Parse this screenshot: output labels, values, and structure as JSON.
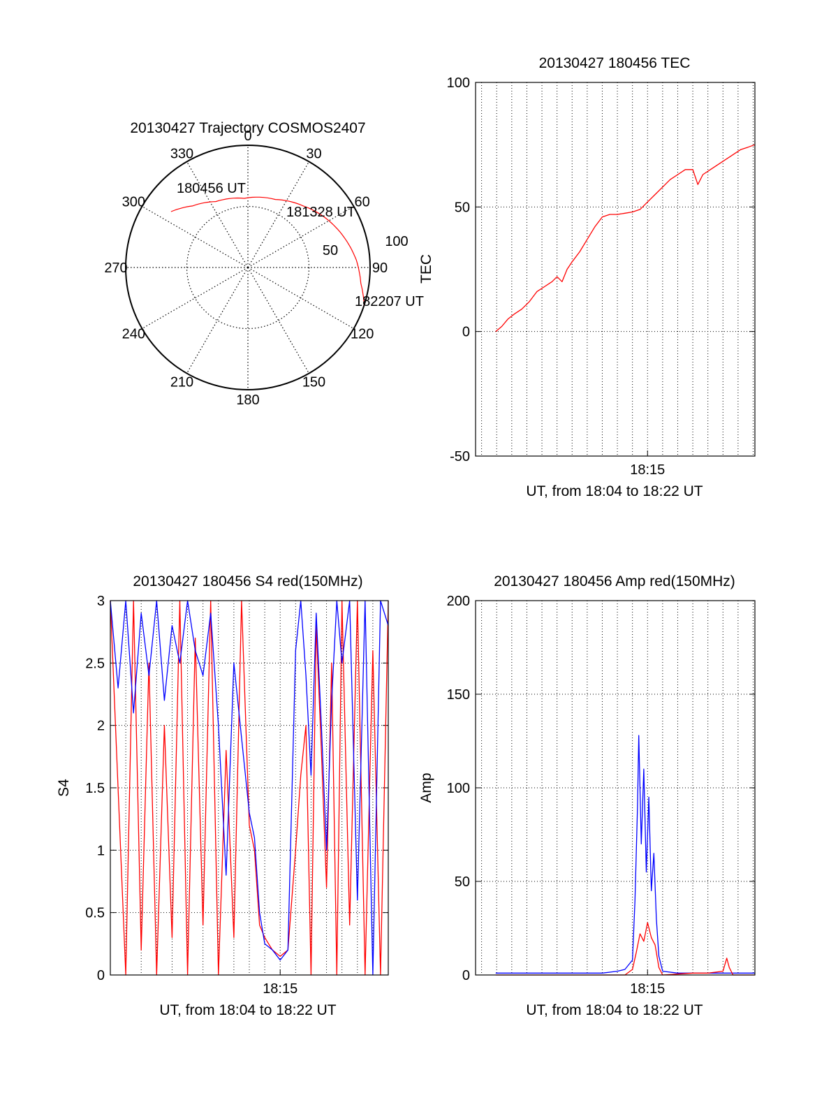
{
  "chart_data": [
    {
      "id": "trajectory",
      "type": "polar",
      "title": "20130427 Trajectory COSMOS2407",
      "azimuth_labels": [
        "0",
        "30",
        "60",
        "90",
        "120",
        "150",
        "180",
        "210",
        "240",
        "270",
        "300",
        "330"
      ],
      "radial_labels": [
        "50",
        "100"
      ],
      "trajectory": [
        {
          "az": 306,
          "el": 20
        },
        {
          "az": 318,
          "el": 29
        },
        {
          "az": 334,
          "el": 36
        },
        {
          "az": 357,
          "el": 39
        },
        {
          "az": 22,
          "el": 36
        },
        {
          "az": 42,
          "el": 29
        },
        {
          "az": 58,
          "el": 22
        },
        {
          "az": 72,
          "el": 16
        },
        {
          "az": 86,
          "el": 10
        },
        {
          "az": 98,
          "el": 6
        },
        {
          "az": 108,
          "el": 0
        }
      ],
      "annotations": [
        {
          "text": "180456 UT",
          "az": 306,
          "el": 20
        },
        {
          "text": "181328 UT",
          "az": 58,
          "el": 22
        },
        {
          "text": "182207 UT",
          "az": 108,
          "el": 0
        }
      ],
      "colors": {
        "trajectory": "#ff0000"
      }
    },
    {
      "id": "tec",
      "type": "line",
      "title": "20130427 180456 TEC",
      "xlabel": "UT, from 18:04 to 18:22 UT",
      "ylabel": "TEC",
      "ylim": [
        -50,
        100
      ],
      "yticks": [
        -50,
        0,
        50,
        100
      ],
      "xlim": [
        "18:03:36",
        "18:22:07"
      ],
      "xtick_labels": [
        {
          "t": "18:15:00",
          "label": "18:15"
        }
      ],
      "grid": true,
      "series": [
        {
          "color": "#ff0000",
          "points": [
            [
              "18:04:56",
              0
            ],
            [
              "18:05:20",
              2
            ],
            [
              "18:05:45",
              5
            ],
            [
              "18:06:10",
              7
            ],
            [
              "18:06:40",
              9
            ],
            [
              "18:07:10",
              12
            ],
            [
              "18:07:40",
              16
            ],
            [
              "18:08:10",
              18
            ],
            [
              "18:08:40",
              20
            ],
            [
              "18:09:00",
              22
            ],
            [
              "18:09:20",
              20
            ],
            [
              "18:09:40",
              25
            ],
            [
              "18:10:00",
              28
            ],
            [
              "18:10:30",
              32
            ],
            [
              "18:11:00",
              37
            ],
            [
              "18:11:30",
              42
            ],
            [
              "18:12:00",
              46
            ],
            [
              "18:12:30",
              47
            ],
            [
              "18:13:00",
              47
            ],
            [
              "18:13:30",
              47.5
            ],
            [
              "18:14:00",
              48
            ],
            [
              "18:14:30",
              49
            ],
            [
              "18:15:00",
              52
            ],
            [
              "18:15:30",
              55
            ],
            [
              "18:16:00",
              58
            ],
            [
              "18:16:30",
              61
            ],
            [
              "18:17:00",
              63
            ],
            [
              "18:17:30",
              65
            ],
            [
              "18:18:00",
              65
            ],
            [
              "18:18:20",
              59
            ],
            [
              "18:18:40",
              63
            ],
            [
              "18:19:10",
              65
            ],
            [
              "18:19:40",
              67
            ],
            [
              "18:20:10",
              69
            ],
            [
              "18:20:40",
              71
            ],
            [
              "18:21:10",
              73
            ],
            [
              "18:21:40",
              74
            ],
            [
              "18:22:07",
              75
            ]
          ]
        }
      ]
    },
    {
      "id": "s4",
      "type": "line",
      "title": "20130427 180456 S4 red(150MHz)",
      "xlabel": "UT, from 18:04 to 18:22 UT",
      "ylabel": "S4",
      "ylim": [
        0,
        3
      ],
      "yticks": [
        0,
        0.5,
        1,
        1.5,
        2,
        2.5,
        3
      ],
      "xlim": [
        "18:04:00",
        "18:22:00"
      ],
      "xtick_labels": [
        {
          "t": "18:15:00",
          "label": "18:15"
        }
      ],
      "grid": true,
      "series": [
        {
          "color": "#ff0000",
          "points": [
            [
              "18:04:00",
              3
            ],
            [
              "18:05:00",
              0
            ],
            [
              "18:05:30",
              3
            ],
            [
              "18:06:00",
              0.2
            ],
            [
              "18:06:30",
              2.5
            ],
            [
              "18:07:00",
              0
            ],
            [
              "18:07:30",
              2
            ],
            [
              "18:08:00",
              0.3
            ],
            [
              "18:08:30",
              3
            ],
            [
              "18:09:00",
              0
            ],
            [
              "18:09:30",
              2.7
            ],
            [
              "18:10:00",
              0.4
            ],
            [
              "18:10:30",
              3
            ],
            [
              "18:11:00",
              0
            ],
            [
              "18:11:30",
              1.8
            ],
            [
              "18:12:00",
              0.3
            ],
            [
              "18:12:30",
              3
            ],
            [
              "18:13:00",
              1.2
            ],
            [
              "18:13:20",
              1.0
            ],
            [
              "18:13:40",
              0.4
            ],
            [
              "18:14:00",
              0.3
            ],
            [
              "18:14:30",
              0.2
            ],
            [
              "18:15:00",
              0.15
            ],
            [
              "18:15:30",
              0.2
            ],
            [
              "18:16:00",
              1.0
            ],
            [
              "18:16:20",
              1.6
            ],
            [
              "18:16:40",
              2.0
            ],
            [
              "18:17:00",
              0
            ],
            [
              "18:17:20",
              2.8
            ],
            [
              "18:17:40",
              1.8
            ],
            [
              "18:18:00",
              0.7
            ],
            [
              "18:18:20",
              2.5
            ],
            [
              "18:18:40",
              0
            ],
            [
              "18:19:00",
              3
            ],
            [
              "18:19:30",
              0.4
            ],
            [
              "18:20:00",
              3
            ],
            [
              "18:20:30",
              0
            ],
            [
              "18:21:00",
              2.6
            ],
            [
              "18:21:30",
              0
            ],
            [
              "18:22:00",
              3
            ]
          ]
        },
        {
          "color": "#0000ff",
          "points": [
            [
              "18:04:00",
              3
            ],
            [
              "18:04:30",
              2.3
            ],
            [
              "18:05:00",
              3
            ],
            [
              "18:05:30",
              2.1
            ],
            [
              "18:06:00",
              2.9
            ],
            [
              "18:06:30",
              2.4
            ],
            [
              "18:07:00",
              3
            ],
            [
              "18:07:30",
              2.2
            ],
            [
              "18:08:00",
              2.8
            ],
            [
              "18:08:30",
              2.5
            ],
            [
              "18:09:00",
              3
            ],
            [
              "18:09:30",
              2.6
            ],
            [
              "18:10:00",
              2.4
            ],
            [
              "18:10:30",
              2.9
            ],
            [
              "18:11:00",
              2.0
            ],
            [
              "18:11:30",
              0.8
            ],
            [
              "18:12:00",
              2.5
            ],
            [
              "18:12:30",
              1.9
            ],
            [
              "18:13:00",
              1.3
            ],
            [
              "18:13:20",
              1.1
            ],
            [
              "18:13:40",
              0.5
            ],
            [
              "18:14:00",
              0.25
            ],
            [
              "18:14:30",
              0.2
            ],
            [
              "18:15:00",
              0.12
            ],
            [
              "18:15:30",
              0.2
            ],
            [
              "18:16:00",
              2.6
            ],
            [
              "18:16:20",
              3
            ],
            [
              "18:16:40",
              2.4
            ],
            [
              "18:17:00",
              1.6
            ],
            [
              "18:17:20",
              2.9
            ],
            [
              "18:17:40",
              2.0
            ],
            [
              "18:18:00",
              1.0
            ],
            [
              "18:18:20",
              2.2
            ],
            [
              "18:18:40",
              3
            ],
            [
              "18:19:00",
              2.5
            ],
            [
              "18:19:30",
              3
            ],
            [
              "18:20:00",
              0.6
            ],
            [
              "18:20:30",
              3
            ],
            [
              "18:21:00",
              0
            ],
            [
              "18:21:30",
              3
            ],
            [
              "18:22:00",
              2.8
            ]
          ]
        }
      ]
    },
    {
      "id": "amp",
      "type": "line",
      "title": "20130427 180456 Amp red(150MHz)",
      "xlabel": "UT, from 18:04 to 18:22 UT",
      "ylabel": "Amp",
      "ylim": [
        0,
        200
      ],
      "yticks": [
        0,
        50,
        100,
        150,
        200
      ],
      "xlim": [
        "18:03:36",
        "18:22:07"
      ],
      "xtick_labels": [
        {
          "t": "18:15:00",
          "label": "18:15"
        }
      ],
      "grid": true,
      "series": [
        {
          "color": "#0000ff",
          "points": [
            [
              "18:04:56",
              1
            ],
            [
              "18:06:00",
              1
            ],
            [
              "18:08:00",
              1
            ],
            [
              "18:10:00",
              1
            ],
            [
              "18:12:00",
              1
            ],
            [
              "18:13:00",
              2
            ],
            [
              "18:13:30",
              3
            ],
            [
              "18:14:00",
              8
            ],
            [
              "18:14:10",
              40
            ],
            [
              "18:14:20",
              90
            ],
            [
              "18:14:25",
              128
            ],
            [
              "18:14:35",
              70
            ],
            [
              "18:14:45",
              110
            ],
            [
              "18:14:55",
              55
            ],
            [
              "18:15:05",
              95
            ],
            [
              "18:15:15",
              45
            ],
            [
              "18:15:25",
              65
            ],
            [
              "18:15:35",
              30
            ],
            [
              "18:15:45",
              10
            ],
            [
              "18:16:00",
              2
            ],
            [
              "18:17:00",
              1
            ],
            [
              "18:18:00",
              1
            ],
            [
              "18:20:00",
              1
            ],
            [
              "18:22:07",
              1
            ]
          ]
        },
        {
          "color": "#ff0000",
          "points": [
            [
              "18:04:56",
              0
            ],
            [
              "18:13:30",
              0
            ],
            [
              "18:14:00",
              3
            ],
            [
              "18:14:15",
              12
            ],
            [
              "18:14:30",
              22
            ],
            [
              "18:14:45",
              18
            ],
            [
              "18:15:00",
              28
            ],
            [
              "18:15:15",
              20
            ],
            [
              "18:15:30",
              16
            ],
            [
              "18:15:45",
              4
            ],
            [
              "18:16:00",
              0
            ],
            [
              "18:18:00",
              1
            ],
            [
              "18:19:00",
              1
            ],
            [
              "18:20:00",
              2
            ],
            [
              "18:20:15",
              9
            ],
            [
              "18:20:25",
              4
            ],
            [
              "18:20:40",
              0
            ],
            [
              "18:22:07",
              0
            ]
          ]
        }
      ]
    }
  ]
}
